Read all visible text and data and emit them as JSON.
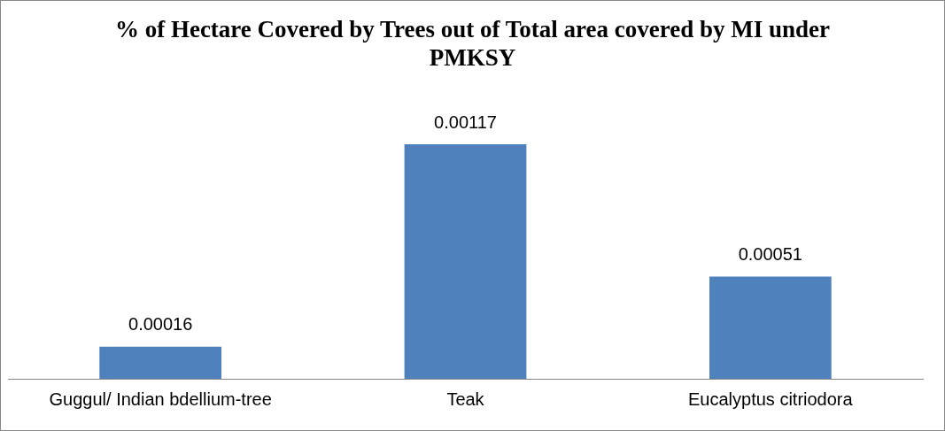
{
  "chart_data": {
    "type": "bar",
    "title": "% of Hectare Covered by Trees out of Total area covered by MI under PMKSY",
    "categories": [
      "Guggul/ Indian bdellium-tree",
      "Teak",
      "Eucalyptus citriodora"
    ],
    "values": [
      0.00016,
      0.00117,
      0.00051
    ],
    "color": "#4f81bd",
    "data_labels": true,
    "grid": false,
    "legend": false
  }
}
